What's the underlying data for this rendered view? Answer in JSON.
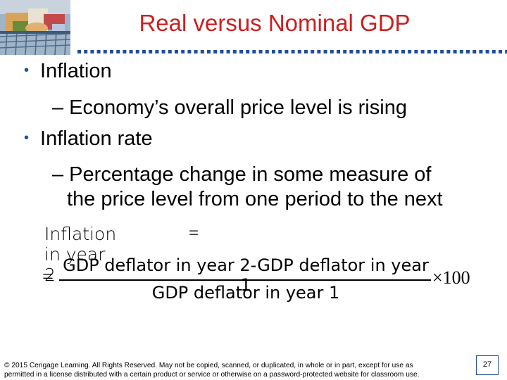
{
  "slide": {
    "title": "Real versus Nominal GDP",
    "bullets": [
      {
        "text": "Inflation",
        "sub": "– Economy’s overall price level is rising"
      },
      {
        "text": "Inflation rate",
        "sub_line1": "– Percentage change in some measure of",
        "sub_line2": "the price level from one period to the next"
      }
    ],
    "formula": {
      "label": "Inflation in year 2",
      "equals": "=",
      "numerator": "GDP deflator in year 2-GDP deflator in year 1",
      "denominator": "GDP deflator in year 1",
      "times": "×100"
    },
    "footer": {
      "line1": "© 2015 Cengage Learning. All Rights Reserved. May not be copied, scanned, or duplicated, in whole or in part, except for use as",
      "line2": "permitted in a license distributed with a certain product or service or otherwise on a password-protected website for classroom use."
    },
    "page_number": "27"
  },
  "colors": {
    "title": "#cc1f1f",
    "accent": "#1f4e9a"
  }
}
